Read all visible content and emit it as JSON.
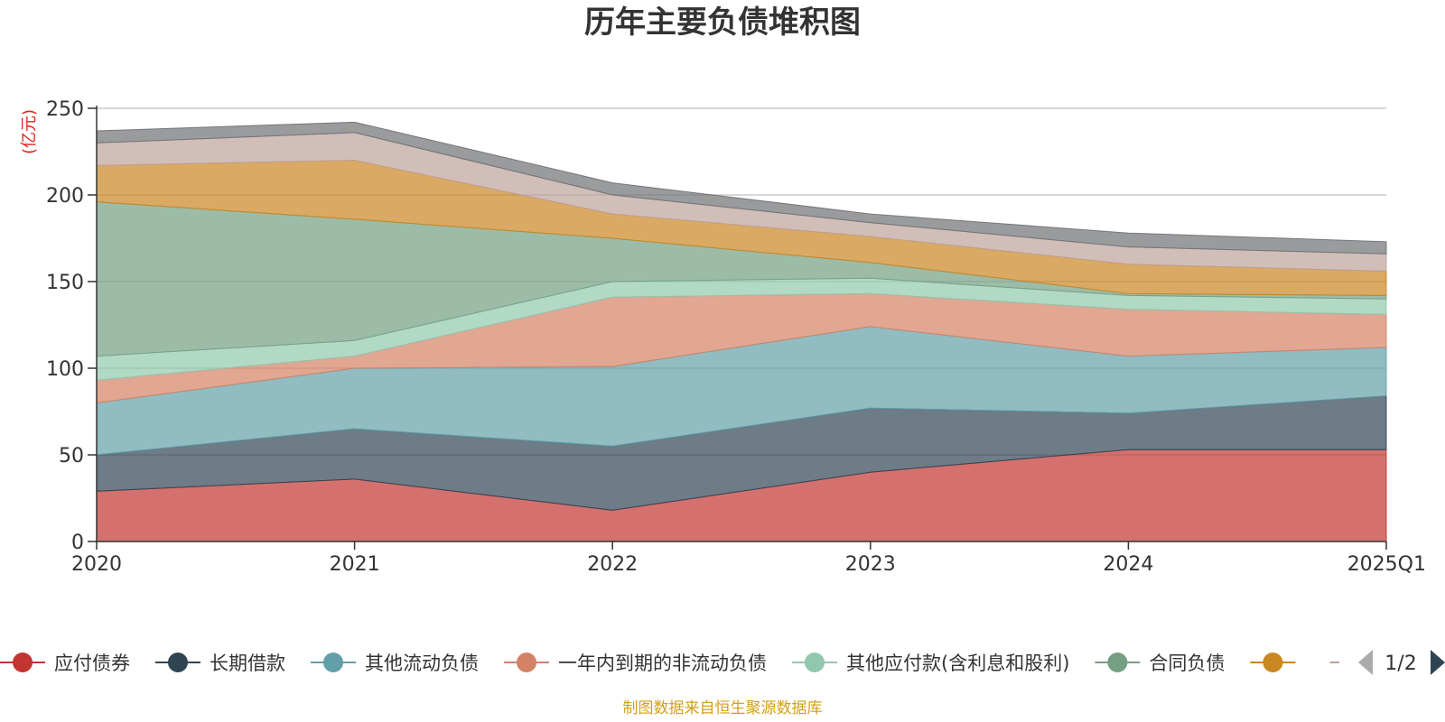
{
  "chart_data": {
    "type": "area",
    "stacked": true,
    "title": "历年主要负债堆积图",
    "unit": "(亿元)",
    "ylim": [
      0,
      250
    ],
    "yticks": [
      0,
      50,
      100,
      150,
      200,
      250
    ],
    "grid": true,
    "categories": [
      "2020",
      "2021",
      "2022",
      "2023",
      "2024",
      "2025Q1"
    ],
    "series": [
      {
        "name": "应付债券",
        "color": "#c23531",
        "values": [
          29,
          36,
          18,
          40,
          53,
          53
        ]
      },
      {
        "name": "长期借款",
        "color": "#2f4554",
        "values": [
          21,
          29,
          37,
          37,
          21,
          31
        ]
      },
      {
        "name": "其他流动负债",
        "color": "#61a0a8",
        "values": [
          30,
          35,
          46,
          47,
          33,
          28
        ]
      },
      {
        "name": "一年内到期的非流动负债",
        "color": "#d48265",
        "values": [
          13,
          7,
          40,
          19,
          27,
          19
        ]
      },
      {
        "name": "其他应付款(含利息和股利)",
        "color": "#91c7ae",
        "values": [
          14,
          9,
          9,
          9,
          8,
          9
        ]
      },
      {
        "name": "合同负债",
        "color": "#749f83",
        "values": [
          89,
          70,
          25,
          9,
          1,
          2
        ]
      },
      {
        "name": "",
        "color": "#ca8622",
        "values": [
          21,
          34,
          14,
          15,
          17,
          14
        ]
      },
      {
        "name": "",
        "color": "#bda29a",
        "values": [
          13,
          16,
          11,
          8,
          10,
          10
        ]
      },
      {
        "name": "",
        "color": "#6e7074",
        "values": [
          7,
          6,
          7,
          5,
          8,
          7
        ]
      }
    ],
    "legend": {
      "position": "bottom",
      "visible_items": [
        "应付债券",
        "长期借款",
        "其他流动负债",
        "一年内到期的非流动负债",
        "其他应付款(含利息和股利)",
        "合同负债"
      ],
      "page": "1/2"
    }
  },
  "source_note": "制图数据来自恒生聚源数据库"
}
